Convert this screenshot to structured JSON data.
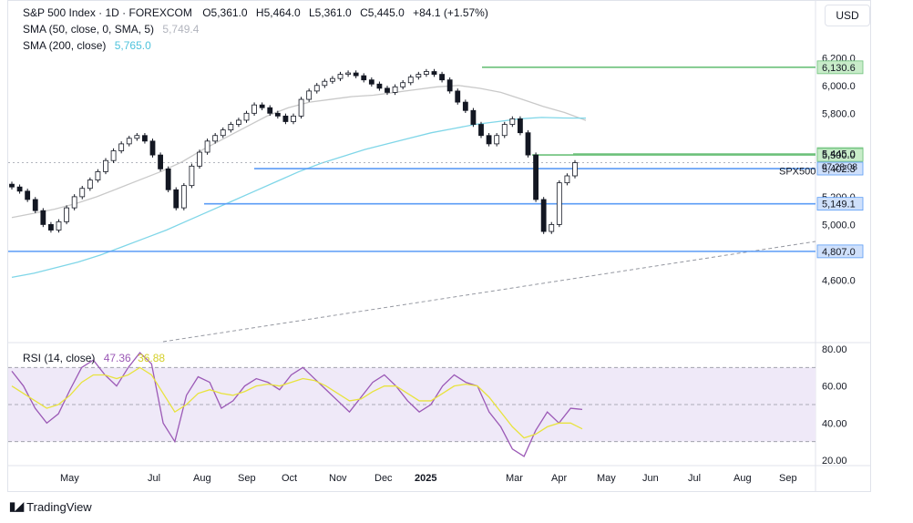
{
  "header": {
    "symbol": "S&P 500 Index · 1D · FOREXCOM",
    "ohlc": [
      {
        "label": "O",
        "value": "5,361.0"
      },
      {
        "label": "H",
        "value": "5,464.0"
      },
      {
        "label": "L",
        "value": "5,361.0"
      },
      {
        "label": "C",
        "value": "5,445.0"
      }
    ],
    "change": "+84.1 (+1.57%)",
    "sma50_label": "SMA (50, close, 0, SMA, 5)",
    "sma50_value": "5,749.4",
    "sma200_label": "SMA (200, close)",
    "sma200_value": "5,765.0",
    "currency": "USD"
  },
  "rsi_legend": {
    "label": "RSI (14, close)",
    "value": "47.36",
    "value2": "36.88"
  },
  "branding": {
    "logo_text": "TradingView"
  },
  "colors": {
    "up": "#131722",
    "down": "#131722",
    "sma50": "#c9c9c9",
    "sma200": "#7fd6e8",
    "support": "#5b9cf6",
    "resistance": "#6cc17a",
    "rsi": "#9b59b6",
    "rsi_ma": "#e8e33d",
    "rsi_band": "#efe9f8"
  },
  "chart_data": [
    {
      "type": "candlestick",
      "title": "S&P 500 Index · 1D · FOREXCOM",
      "xlabels": [
        "May",
        "Jul",
        "Aug",
        "Sep",
        "Oct",
        "Nov",
        "Dec",
        "2025",
        "Mar",
        "Apr",
        "May",
        "Jun",
        "Jul",
        "Aug",
        "Sep"
      ],
      "ylim": [
        4400,
        6300
      ],
      "yticks": [
        "6,200.0",
        "6,000.0",
        "5,800.0",
        "5,200.0",
        "5,000.0",
        "4,600.0"
      ],
      "series": [
        {
          "name": "SPX500",
          "kind": "close",
          "values": [
            5270,
            5240,
            5180,
            5100,
            5000,
            4960,
            5020,
            5120,
            5200,
            5260,
            5320,
            5380,
            5460,
            5530,
            5580,
            5620,
            5640,
            5600,
            5500,
            5400,
            5250,
            5120,
            5280,
            5420,
            5520,
            5600,
            5640,
            5680,
            5720,
            5750,
            5800,
            5860,
            5840,
            5800,
            5780,
            5740,
            5780,
            5900,
            5960,
            6000,
            6030,
            6050,
            6080,
            6090,
            6070,
            6040,
            6010,
            5980,
            5950,
            5990,
            6020,
            6060,
            6080,
            6100,
            6080,
            6040,
            5960,
            5880,
            5820,
            5720,
            5640,
            5580,
            5640,
            5720,
            5760,
            5660,
            5500,
            5180,
            4950,
            5000,
            5300,
            5350,
            5445
          ]
        },
        {
          "name": "SMA (50, close, 0, SMA, 5)",
          "values": [
            5050,
            5080,
            5110,
            5150,
            5200,
            5260,
            5320,
            5380,
            5450,
            5540,
            5620,
            5700,
            5780,
            5840,
            5880,
            5900,
            5920,
            5930,
            5950,
            5970,
            5990,
            6000,
            5980,
            5950,
            5900,
            5849,
            5805,
            5749
          ]
        },
        {
          "name": "SMA (200, close)",
          "values": [
            4620,
            4650,
            4690,
            4730,
            4780,
            4840,
            4900,
            4960,
            5030,
            5100,
            5170,
            5240,
            5310,
            5380,
            5440,
            5490,
            5540,
            5580,
            5620,
            5660,
            5690,
            5720,
            5740,
            5760,
            5770,
            5766,
            5765
          ]
        }
      ],
      "levels": [
        {
          "value": 6130.6,
          "label": "6,130.6",
          "kind": "resistance"
        },
        {
          "value": 5506.7,
          "label": "5,506.7",
          "kind": "resistance"
        },
        {
          "value": 5500.0,
          "label": "5,500.0",
          "kind": "resistance"
        },
        {
          "value": 5402.3,
          "label": "5,402.3",
          "kind": "support"
        },
        {
          "value": 5149.1,
          "label": "5,149.1",
          "kind": "support"
        },
        {
          "value": 4807.0,
          "label": "4,807.0",
          "kind": "support"
        }
      ],
      "price_label": {
        "value": "5,445.0",
        "countdown": "07:28:08",
        "name": "SPX500"
      }
    },
    {
      "type": "line",
      "title": "RSI (14, close)",
      "ylim": [
        20,
        80
      ],
      "yticks": [
        "80.00",
        "60.00",
        "40.00",
        "20.00"
      ],
      "bands": [
        30,
        50,
        70
      ],
      "series": [
        {
          "name": "RSI",
          "values": [
            68,
            60,
            48,
            40,
            45,
            58,
            70,
            74,
            66,
            60,
            70,
            78,
            72,
            40,
            30,
            55,
            65,
            62,
            48,
            52,
            60,
            64,
            62,
            58,
            66,
            70,
            64,
            58,
            52,
            46,
            54,
            62,
            66,
            60,
            52,
            46,
            50,
            60,
            66,
            62,
            60,
            46,
            38,
            26,
            22,
            36,
            46,
            40,
            48,
            47.36
          ]
        },
        {
          "name": "RSI MA",
          "values": [
            60,
            56,
            52,
            48,
            50,
            55,
            62,
            66,
            66,
            64,
            66,
            70,
            66,
            56,
            46,
            50,
            56,
            58,
            56,
            55,
            57,
            60,
            61,
            60,
            62,
            64,
            63,
            60,
            56,
            52,
            53,
            57,
            60,
            60,
            56,
            52,
            52,
            56,
            60,
            61,
            60,
            54,
            46,
            38,
            32,
            34,
            38,
            40,
            40,
            36.88
          ]
        }
      ]
    }
  ]
}
